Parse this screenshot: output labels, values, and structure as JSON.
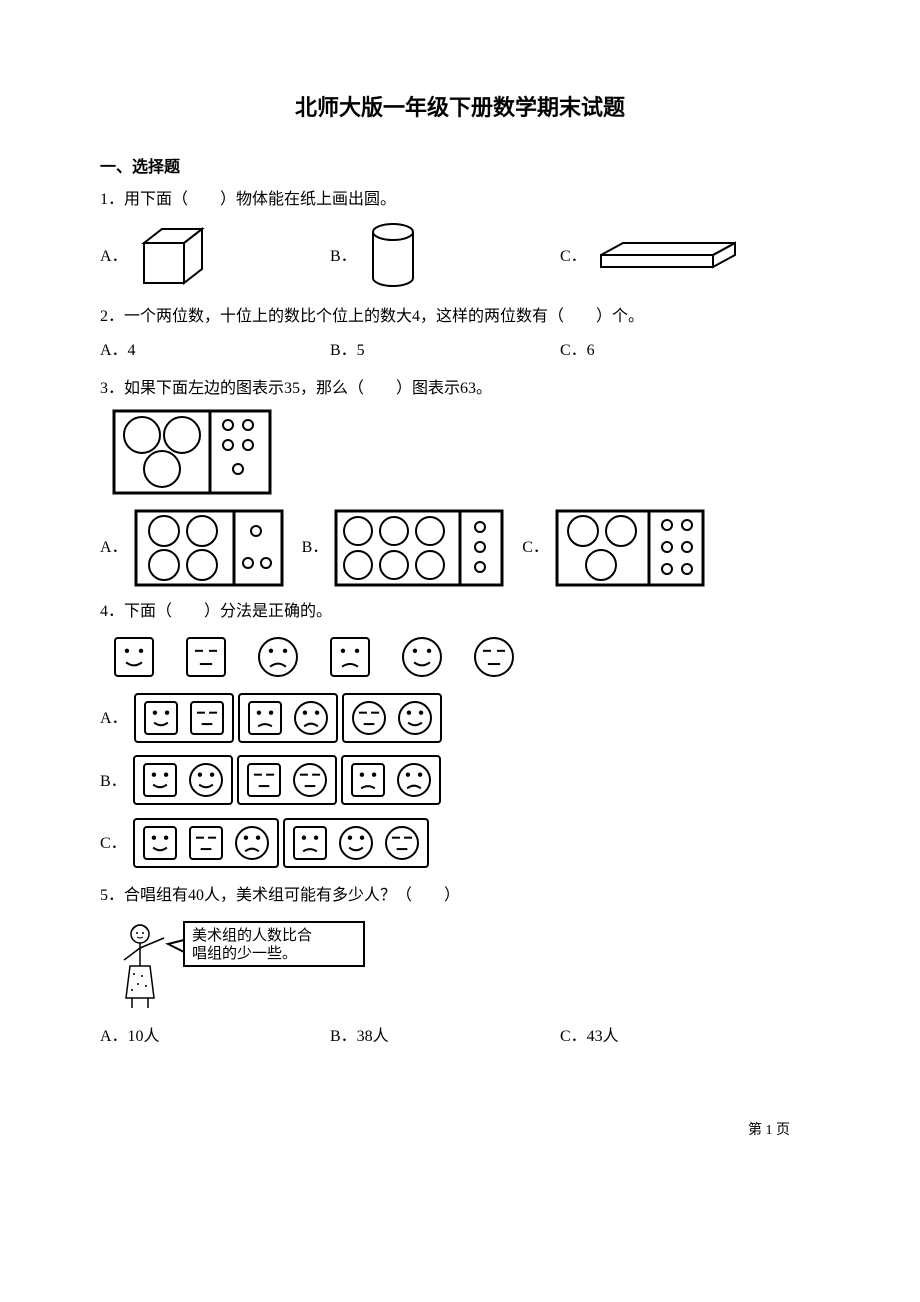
{
  "title": "北师大版一年级下册数学期末试题",
  "section1_header": "一、选择题",
  "q1": {
    "text": "1．用下面（　　）物体能在纸上画出圆。",
    "A": "A．",
    "B": "B．",
    "C": "C．"
  },
  "q2": {
    "text": "2．一个两位数，十位上的数比个位上的数大4，这样的两位数有（　　）个。",
    "A": "A．4",
    "B": "B．5",
    "C": "C．6"
  },
  "q3": {
    "text": "3．如果下面左边的图表示35，那么（　　）图表示63。",
    "A": "A．",
    "B": "B．",
    "C": "C．",
    "ref": {
      "big": 3,
      "small": 5
    },
    "optA": {
      "big": 4,
      "small_layout": "1-2"
    },
    "optB": {
      "big": 6,
      "small": 3
    },
    "optC": {
      "big": 3,
      "small": 6
    }
  },
  "q4": {
    "text": "4．下面（　　）分法是正确的。",
    "A": "A．",
    "B": "B．",
    "C": "C．",
    "icons": [
      "sq-smile",
      "sq-neutral",
      "c-sad",
      "sq-frown",
      "c-smile",
      "c-neutral"
    ],
    "optA": [
      [
        "sq-smile",
        "sq-neutral"
      ],
      [
        "sq-frown",
        "c-sad"
      ],
      [
        "c-neutral",
        "c-smile"
      ]
    ],
    "optB": [
      [
        "sq-smile",
        "c-smile"
      ],
      [
        "sq-neutral",
        "c-neutral"
      ],
      [
        "sq-frown",
        "c-sad"
      ]
    ],
    "optC": [
      [
        "sq-smile",
        "sq-neutral",
        "c-sad"
      ],
      [
        "sq-frown",
        "c-smile",
        "c-neutral"
      ]
    ]
  },
  "q5": {
    "text": "5．合唱组有40人，美术组可能有多少人？（　　）",
    "bubble": "美术组的人数比合\n唱组的少一些。",
    "A": "A．10人",
    "B": "B．38人",
    "C": "C．43人"
  },
  "footer": "第 1 页",
  "colors": {
    "stroke": "#000000",
    "bg": "#ffffff"
  }
}
